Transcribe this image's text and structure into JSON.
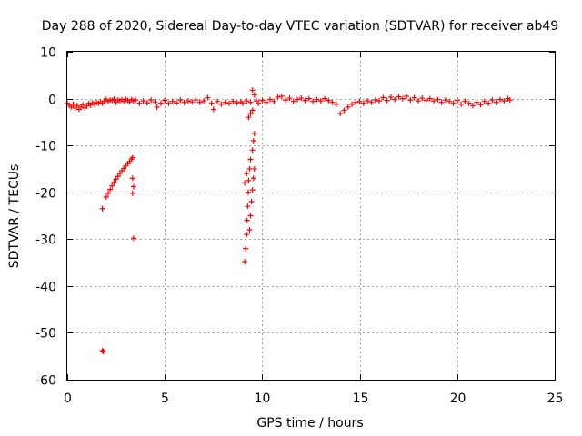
{
  "chart_data": {
    "type": "scatter",
    "title": "Day 288 of 2020, Sidereal Day-to-day VTEC variation (SDTVAR) for receiver ab49",
    "xlabel": "GPS time / hours",
    "ylabel": "SDTVAR / TECUs",
    "xlim": [
      0,
      25
    ],
    "ylim": [
      -60,
      10
    ],
    "xticks": [
      "0",
      "5",
      "10",
      "15",
      "20",
      "25"
    ],
    "yticks": [
      "10",
      "0",
      "-10",
      "-20",
      "-30",
      "-40",
      "-50",
      "-60"
    ],
    "grid": true,
    "marker": "+",
    "color": "#ff0000",
    "series": [
      {
        "points": [
          [
            0.0,
            -1.0
          ],
          [
            0.1,
            -1.4
          ],
          [
            0.2,
            -1.8
          ],
          [
            0.3,
            -1.2
          ],
          [
            0.4,
            -2.0
          ],
          [
            0.5,
            -1.5
          ],
          [
            0.6,
            -2.3
          ],
          [
            0.7,
            -1.8
          ],
          [
            0.8,
            -1.3
          ],
          [
            0.9,
            -2.0
          ],
          [
            1.0,
            -1.6
          ],
          [
            1.1,
            -1.0
          ],
          [
            1.2,
            -1.4
          ],
          [
            1.3,
            -0.9
          ],
          [
            1.4,
            -1.2
          ],
          [
            1.5,
            -0.8
          ],
          [
            1.6,
            -1.0
          ],
          [
            1.7,
            -0.7
          ],
          [
            1.8,
            -1.0
          ],
          [
            1.9,
            -0.5
          ],
          [
            2.0,
            -0.2
          ],
          [
            2.1,
            -0.6
          ],
          [
            2.2,
            -0.3
          ],
          [
            2.3,
            -0.4
          ],
          [
            2.4,
            -0.1
          ],
          [
            2.5,
            -0.8
          ],
          [
            2.6,
            -0.3
          ],
          [
            2.7,
            -0.5
          ],
          [
            2.8,
            -0.2
          ],
          [
            2.9,
            -0.6
          ],
          [
            3.0,
            -0.1
          ],
          [
            3.1,
            -0.4
          ],
          [
            3.2,
            -0.7
          ],
          [
            3.3,
            -0.2
          ],
          [
            3.4,
            -0.5
          ],
          [
            3.5,
            -0.3
          ],
          [
            3.7,
            -1.0
          ],
          [
            3.9,
            -0.5
          ],
          [
            4.1,
            -0.9
          ],
          [
            4.3,
            -0.3
          ],
          [
            4.5,
            -0.7
          ],
          [
            4.6,
            -1.8
          ],
          [
            4.8,
            -1.0
          ],
          [
            5.0,
            -0.4
          ],
          [
            5.2,
            -1.0
          ],
          [
            5.4,
            -0.6
          ],
          [
            5.6,
            -0.9
          ],
          [
            5.8,
            -0.3
          ],
          [
            6.0,
            -0.8
          ],
          [
            6.2,
            -0.5
          ],
          [
            6.4,
            -0.7
          ],
          [
            6.6,
            -0.3
          ],
          [
            6.8,
            -0.8
          ],
          [
            7.0,
            -0.5
          ],
          [
            7.2,
            0.2
          ],
          [
            7.4,
            -1.0
          ],
          [
            7.5,
            -2.3
          ],
          [
            7.7,
            -0.6
          ],
          [
            7.9,
            -1.2
          ],
          [
            8.1,
            -0.8
          ],
          [
            8.3,
            -1.0
          ],
          [
            8.5,
            -0.6
          ],
          [
            8.7,
            -0.9
          ],
          [
            8.9,
            -0.7
          ],
          [
            9.0,
            -1.0
          ],
          [
            9.2,
            -0.5
          ],
          [
            9.4,
            -0.8
          ],
          [
            9.5,
            1.8
          ],
          [
            9.6,
            0.8
          ],
          [
            9.7,
            -0.5
          ],
          [
            9.8,
            -1.0
          ],
          [
            10.0,
            -0.4
          ],
          [
            10.2,
            -0.8
          ],
          [
            10.4,
            -0.2
          ],
          [
            10.6,
            -0.6
          ],
          [
            10.8,
            0.3
          ],
          [
            11.0,
            0.5
          ],
          [
            11.2,
            -0.3
          ],
          [
            11.4,
            0.1
          ],
          [
            11.6,
            -0.6
          ],
          [
            11.8,
            -0.2
          ],
          [
            12.0,
            0.1
          ],
          [
            12.2,
            -0.4
          ],
          [
            12.4,
            0.0
          ],
          [
            12.6,
            -0.6
          ],
          [
            12.8,
            -0.2
          ],
          [
            13.0,
            -0.5
          ],
          [
            13.2,
            0.0
          ],
          [
            13.4,
            -0.4
          ],
          [
            13.6,
            -0.8
          ],
          [
            13.8,
            -1.2
          ],
          [
            14.0,
            -3.2
          ],
          [
            14.2,
            -2.5
          ],
          [
            14.4,
            -1.8
          ],
          [
            14.6,
            -1.2
          ],
          [
            14.8,
            -0.8
          ],
          [
            15.0,
            -0.6
          ],
          [
            15.2,
            -1.0
          ],
          [
            15.4,
            -0.5
          ],
          [
            15.6,
            -0.8
          ],
          [
            15.8,
            -0.3
          ],
          [
            16.0,
            -0.5
          ],
          [
            16.2,
            0.2
          ],
          [
            16.4,
            -0.4
          ],
          [
            16.6,
            0.3
          ],
          [
            16.8,
            -0.2
          ],
          [
            17.0,
            0.4
          ],
          [
            17.2,
            0.0
          ],
          [
            17.4,
            0.5
          ],
          [
            17.6,
            -0.3
          ],
          [
            17.8,
            0.2
          ],
          [
            18.0,
            -0.5
          ],
          [
            18.2,
            0.1
          ],
          [
            18.4,
            -0.4
          ],
          [
            18.6,
            0.0
          ],
          [
            18.8,
            -0.5
          ],
          [
            19.0,
            -0.2
          ],
          [
            19.2,
            -0.8
          ],
          [
            19.4,
            -0.3
          ],
          [
            19.6,
            -0.6
          ],
          [
            19.8,
            -1.0
          ],
          [
            20.0,
            -0.4
          ],
          [
            20.2,
            -1.2
          ],
          [
            20.4,
            -0.6
          ],
          [
            20.6,
            -1.0
          ],
          [
            20.8,
            -1.5
          ],
          [
            21.0,
            -0.8
          ],
          [
            21.2,
            -1.3
          ],
          [
            21.4,
            -0.6
          ],
          [
            21.6,
            -1.0
          ],
          [
            21.8,
            -0.3
          ],
          [
            22.0,
            -0.8
          ],
          [
            22.2,
            -0.2
          ],
          [
            22.4,
            -0.5
          ],
          [
            22.6,
            0.0
          ],
          [
            22.7,
            -0.3
          ],
          [
            1.8,
            -23.5
          ],
          [
            1.8,
            -53.8
          ],
          [
            1.85,
            -54.0
          ],
          [
            2.0,
            -21.0
          ],
          [
            2.1,
            -20.2
          ],
          [
            2.2,
            -19.4
          ],
          [
            2.3,
            -18.6
          ],
          [
            2.4,
            -17.9
          ],
          [
            2.5,
            -17.2
          ],
          [
            2.6,
            -16.6
          ],
          [
            2.7,
            -16.0
          ],
          [
            2.8,
            -15.4
          ],
          [
            2.9,
            -14.9
          ],
          [
            3.0,
            -14.4
          ],
          [
            3.1,
            -13.9
          ],
          [
            3.2,
            -13.4
          ],
          [
            3.3,
            -12.9
          ],
          [
            3.35,
            -12.6
          ],
          [
            3.35,
            -17.0
          ],
          [
            3.4,
            -18.8
          ],
          [
            3.35,
            -20.2
          ],
          [
            3.4,
            -29.8
          ],
          [
            9.1,
            -34.8
          ],
          [
            9.15,
            -32.0
          ],
          [
            9.2,
            -29.0
          ],
          [
            9.22,
            -26.0
          ],
          [
            9.25,
            -23.0
          ],
          [
            9.28,
            -20.0
          ],
          [
            9.3,
            -17.5
          ],
          [
            9.35,
            -15.0
          ],
          [
            9.4,
            -13.0
          ],
          [
            9.5,
            -11.0
          ],
          [
            9.55,
            -9.0
          ],
          [
            9.6,
            -7.5
          ],
          [
            9.35,
            -28.0
          ],
          [
            9.4,
            -25.0
          ],
          [
            9.45,
            -22.0
          ],
          [
            9.5,
            -19.5
          ],
          [
            9.55,
            -17.0
          ],
          [
            9.6,
            -15.0
          ],
          [
            9.1,
            -18.0
          ],
          [
            9.2,
            -16.0
          ],
          [
            9.3,
            -4.0
          ],
          [
            9.4,
            -3.2
          ],
          [
            9.5,
            -2.5
          ]
        ]
      }
    ]
  }
}
